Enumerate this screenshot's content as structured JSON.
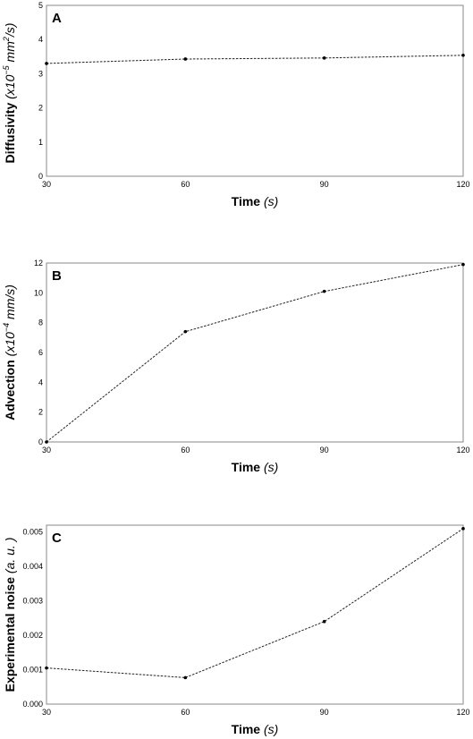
{
  "chart_data": [
    {
      "type": "line",
      "panel_label": "A",
      "x": [
        30,
        60,
        90,
        120
      ],
      "values": [
        3.3,
        3.43,
        3.46,
        3.54
      ],
      "xlim": [
        30,
        120
      ],
      "ylim": [
        0,
        5
      ],
      "x_ticks": [
        "30",
        "60",
        "90",
        "120"
      ],
      "y_ticks": [
        "0",
        "1",
        "2",
        "3",
        "4",
        "5"
      ],
      "xlabel": {
        "bold": "Time ",
        "italic": "(s)"
      },
      "ylabel": {
        "bold": "Diffusivity ",
        "italic_pre": "(x10",
        "sup": "−5",
        "italic_post": " mm",
        "sup2": "2",
        "italic_end": "/s)"
      },
      "grid": false,
      "marker_color": "#000000"
    },
    {
      "type": "line",
      "panel_label": "B",
      "x": [
        30,
        60,
        90,
        120
      ],
      "values": [
        0.0,
        7.4,
        10.1,
        11.9
      ],
      "xlim": [
        30,
        120
      ],
      "ylim": [
        0,
        12
      ],
      "x_ticks": [
        "30",
        "60",
        "90",
        "120"
      ],
      "y_ticks": [
        "0",
        "2",
        "4",
        "6",
        "8",
        "10",
        "12"
      ],
      "xlabel": {
        "bold": "Time ",
        "italic": "(s)"
      },
      "ylabel": {
        "bold": "Advection ",
        "italic_pre": "(x10",
        "sup": "−4",
        "italic_post": " mm/s)"
      },
      "grid": false,
      "marker_color": "#000000"
    },
    {
      "type": "line",
      "panel_label": "C",
      "x": [
        30,
        60,
        90,
        120
      ],
      "values": [
        0.00105,
        0.00077,
        0.0024,
        0.0051
      ],
      "xlim": [
        30,
        120
      ],
      "ylim": [
        0,
        0.0052
      ],
      "x_ticks": [
        "30",
        "60",
        "90",
        "120"
      ],
      "y_ticks": [
        "0.000",
        "0.001",
        "0.002",
        "0.003",
        "0.004",
        "0.005"
      ],
      "xlabel": {
        "bold": "Time ",
        "italic": "(s)"
      },
      "ylabel": {
        "bold": "Experimental noise ",
        "italic": "(a. u. )"
      },
      "grid": false,
      "marker_color": "#000000"
    }
  ]
}
